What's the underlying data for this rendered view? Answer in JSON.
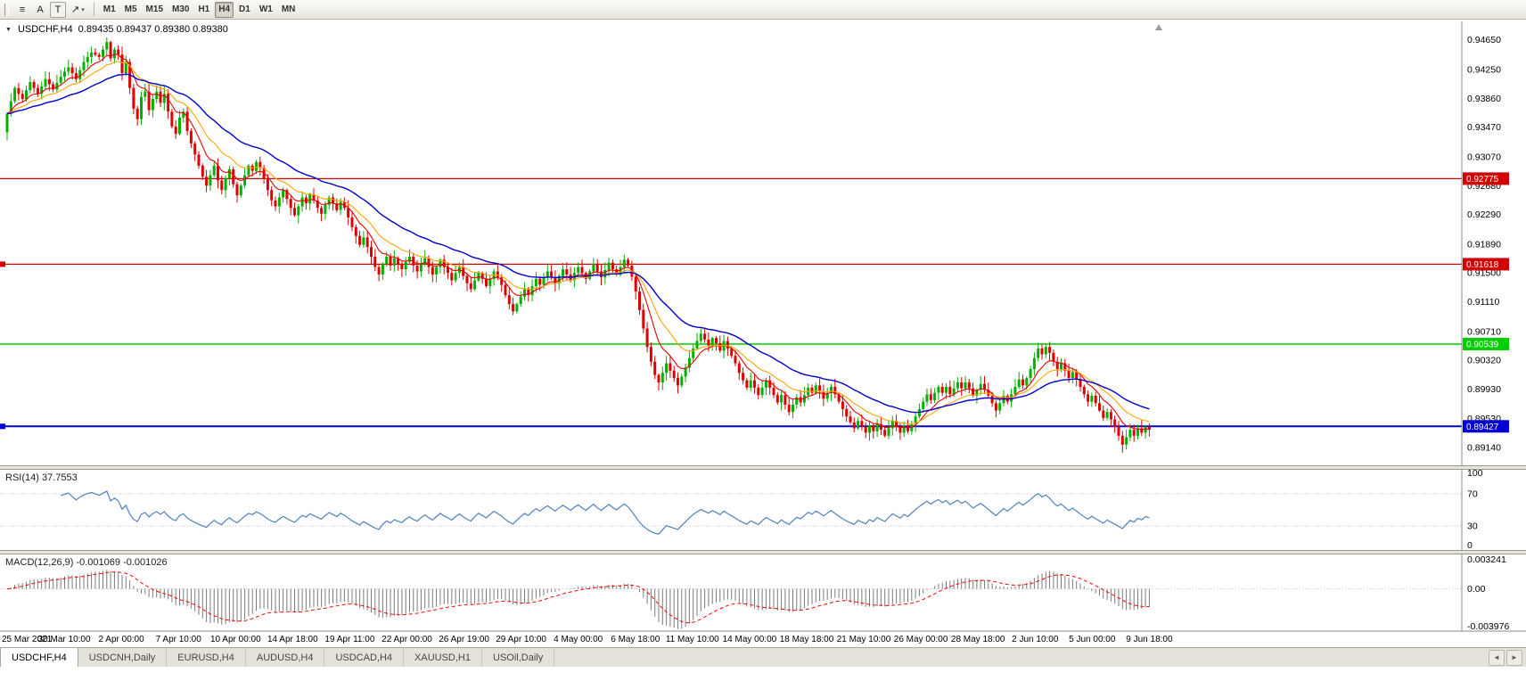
{
  "toolbar": {
    "tools": [
      {
        "name": "charts-list-icon",
        "glyph": "≡"
      },
      {
        "name": "text-tool-icon",
        "glyph": "A"
      },
      {
        "name": "label-tool-icon",
        "glyph": "T",
        "boxed": true
      },
      {
        "name": "arrow-tool-icon",
        "glyph": "↗",
        "caret": "▾"
      }
    ],
    "timeframes": [
      "M1",
      "M5",
      "M15",
      "M30",
      "H1",
      "H4",
      "D1",
      "W1",
      "MN"
    ],
    "active_timeframe": "H4"
  },
  "caption": {
    "dropdown_glyph": "▼",
    "symbol": "USDCHF,H4",
    "quotes": "0.89435 0.89437 0.89380 0.89380"
  },
  "chart": {
    "price_axis_labels": [
      "0.94650",
      "0.94250",
      "0.93860",
      "0.93470",
      "0.93070",
      "0.92680",
      "0.92290",
      "0.91890",
      "0.91500",
      "0.91110",
      "0.90710",
      "0.90320",
      "0.89930",
      "0.89530",
      "0.89140"
    ],
    "time_axis_labels": [
      "25 Mar 2021",
      "30 Mar 10:00",
      "2 Apr 00:00",
      "7 Apr 10:00",
      "10 Apr 00:00",
      "14 Apr 18:00",
      "19 Apr 11:00",
      "22 Apr 00:00",
      "26 Apr 19:00",
      "29 Apr 10:00",
      "4 May 00:00",
      "6 May 18:00",
      "11 May 10:00",
      "14 May 00:00",
      "18 May 18:00",
      "21 May 10:00",
      "26 May 00:00",
      "28 May 18:00",
      "2 Jun 10:00",
      "5 Jun 00:00",
      "9 Jun 18:00"
    ],
    "levels": [
      {
        "label": "0.92775",
        "price": 0.92775,
        "color": "#d20000",
        "width": 1.2,
        "left_marker": false
      },
      {
        "label": "0.91618",
        "price": 0.91618,
        "color": "#d20000",
        "width": 1.2,
        "left_marker": true
      },
      {
        "label": "0.90539",
        "price": 0.90539,
        "color": "#00ce00",
        "width": 1.6,
        "left_marker": false
      },
      {
        "label": "0.89427",
        "price": 0.89427,
        "color": "#0000d2",
        "width": 2,
        "left_marker": true
      }
    ]
  },
  "rsi": {
    "label": "RSI(14) 37.7553",
    "color": "#4f81bd",
    "axis": [
      {
        "label": "100",
        "value": 100
      },
      {
        "label": "70",
        "value": 70
      },
      {
        "label": "30",
        "value": 30
      },
      {
        "label": "0",
        "value": 0
      }
    ]
  },
  "macd": {
    "label": "MACD(12,26,9) -0.001069 -0.001026",
    "histogram_color": "#7b7b7b",
    "signal_color": "#ff0000",
    "axis": [
      {
        "label": "0.003241",
        "value": 0.003241
      },
      {
        "label": "0.00",
        "value": 0
      },
      {
        "label": "-0.003976",
        "value": -0.003976
      }
    ]
  },
  "tabs": {
    "items": [
      "USDCHF,H4",
      "USDCNH,Daily",
      "EURUSD,H4",
      "AUDUSD,H4",
      "USDCAD,H4",
      "XAUUSD,H1",
      "USOil,Daily"
    ],
    "active": "USDCHF,H4",
    "scroll_left_glyph": "◄",
    "scroll_right_glyph": "►"
  },
  "chart_data": {
    "type": "candlestick",
    "symbol": "USDCHF",
    "timeframe": "H4",
    "date_range": [
      "25 Mar 2021",
      "9 Jun 2021"
    ],
    "current_bar": {
      "open": 0.89435,
      "high": 0.89437,
      "low": 0.8938,
      "close": 0.8938
    },
    "price_scale": {
      "top": 0.949,
      "bottom": 0.889
    },
    "macd_scale": {
      "top": 0.003241,
      "bottom": -0.003976
    },
    "first_open": 0.934,
    "colors": {
      "bull": "#00b000",
      "bear": "#dd0000"
    },
    "ma": {
      "fast_period": 8,
      "fast_color": "#e60000",
      "medium_period": 16,
      "medium_color": "#ffa500",
      "slow_period": 34,
      "slow_color": "#0000cc"
    },
    "indicators": [
      {
        "name": "RSI",
        "period": 14,
        "last": 37.7553
      },
      {
        "name": "MACD",
        "fast": 12,
        "slow": 26,
        "signal": 9,
        "last": -0.001069,
        "signal_last": -0.001026
      }
    ],
    "closes": [
      0.9365,
      0.9382,
      0.94,
      0.9392,
      0.9385,
      0.9397,
      0.9408,
      0.94,
      0.9392,
      0.9402,
      0.9412,
      0.9405,
      0.9398,
      0.9407,
      0.9415,
      0.9422,
      0.9428,
      0.942,
      0.9412,
      0.9424,
      0.9435,
      0.9442,
      0.9448,
      0.9445,
      0.9442,
      0.9452,
      0.9462,
      0.944,
      0.9452,
      0.9445,
      0.942,
      0.9435,
      0.94,
      0.9372,
      0.9358,
      0.9388,
      0.9395,
      0.937,
      0.9385,
      0.9395,
      0.938,
      0.9392,
      0.9368,
      0.9348,
      0.9338,
      0.936,
      0.9368,
      0.9342,
      0.9325,
      0.931,
      0.9295,
      0.928,
      0.9268,
      0.9282,
      0.9295,
      0.9275,
      0.9262,
      0.9278,
      0.929,
      0.927,
      0.9255,
      0.9268,
      0.9282,
      0.9295,
      0.9288,
      0.93,
      0.9292,
      0.9278,
      0.9262,
      0.9248,
      0.924,
      0.9252,
      0.9262,
      0.925,
      0.9238,
      0.9228,
      0.924,
      0.9252,
      0.9244,
      0.9256,
      0.9248,
      0.9238,
      0.923,
      0.9242,
      0.9252,
      0.9244,
      0.9235,
      0.9246,
      0.9238,
      0.9225,
      0.9212,
      0.92,
      0.9188,
      0.9198,
      0.9185,
      0.9172,
      0.9158,
      0.9148,
      0.9162,
      0.9172,
      0.916,
      0.917,
      0.9162,
      0.9155,
      0.9165,
      0.9172,
      0.916,
      0.9152,
      0.9162,
      0.917,
      0.9158,
      0.9148,
      0.9158,
      0.9168,
      0.9158,
      0.915,
      0.914,
      0.915,
      0.9158,
      0.9146,
      0.9136,
      0.9128,
      0.914,
      0.915,
      0.9142,
      0.9132,
      0.9142,
      0.9152,
      0.9144,
      0.9134,
      0.912,
      0.9108,
      0.9098,
      0.9108,
      0.9118,
      0.9128,
      0.912,
      0.9132,
      0.9142,
      0.9134,
      0.9144,
      0.9152,
      0.9144,
      0.9136,
      0.9146,
      0.9155,
      0.9148,
      0.914,
      0.915,
      0.9158,
      0.915,
      0.9142,
      0.9152,
      0.9162,
      0.9152,
      0.9144,
      0.9154,
      0.9164,
      0.9155,
      0.9148,
      0.9158,
      0.9168,
      0.916,
      0.9145,
      0.9125,
      0.91,
      0.9075,
      0.905,
      0.903,
      0.9012,
      0.9002,
      0.9015,
      0.9028,
      0.9018,
      0.9008,
      0.8998,
      0.901,
      0.9022,
      0.9035,
      0.9048,
      0.9058,
      0.9068,
      0.906,
      0.9052,
      0.9062,
      0.9055,
      0.9045,
      0.9058,
      0.9048,
      0.9038,
      0.9028,
      0.9015,
      0.9005,
      0.8995,
      0.9005,
      0.8995,
      0.8985,
      0.8995,
      0.9005,
      0.8995,
      0.8985,
      0.8975,
      0.8985,
      0.8972,
      0.8962,
      0.8972,
      0.8982,
      0.8975,
      0.8985,
      0.8995,
      0.8988,
      0.8998,
      0.899,
      0.898,
      0.8988,
      0.8996,
      0.8986,
      0.8976,
      0.8966,
      0.8956,
      0.8948,
      0.894,
      0.895,
      0.8942,
      0.8934,
      0.8944,
      0.8936,
      0.8946,
      0.8938,
      0.893,
      0.894,
      0.895,
      0.8942,
      0.8934,
      0.8944,
      0.8936,
      0.8946,
      0.8956,
      0.8966,
      0.8976,
      0.8986,
      0.8978,
      0.8988,
      0.8996,
      0.8988,
      0.8996,
      0.8986,
      0.8994,
      0.9002,
      0.8994,
      0.9002,
      0.8994,
      0.8984,
      0.8992,
      0.9,
      0.8992,
      0.8984,
      0.8974,
      0.8964,
      0.8974,
      0.8984,
      0.8976,
      0.8986,
      0.8996,
      0.9006,
      0.8998,
      0.9008,
      0.902,
      0.9035,
      0.9048,
      0.904,
      0.905,
      0.9042,
      0.903,
      0.902,
      0.9028,
      0.9018,
      0.9008,
      0.9016,
      0.9006,
      0.8996,
      0.8986,
      0.8976,
      0.8984,
      0.8974,
      0.8964,
      0.8954,
      0.8962,
      0.8952,
      0.8942,
      0.893,
      0.8918,
      0.8928,
      0.8938,
      0.893,
      0.894,
      0.8934,
      0.8942,
      0.8938
    ]
  }
}
